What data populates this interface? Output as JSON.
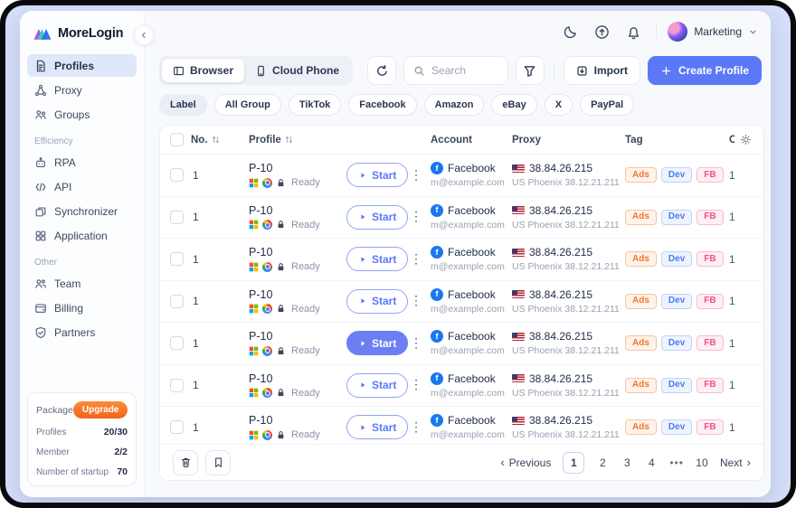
{
  "brand": {
    "name": "MoreLogin"
  },
  "topbar": {
    "icons": [
      "dark-mode",
      "upload",
      "notifications"
    ],
    "account_name": "Marketing"
  },
  "sidebar": {
    "sections": [
      {
        "title": "",
        "items": [
          {
            "label": "Profiles",
            "icon": "file",
            "active": true
          },
          {
            "label": "Proxy",
            "icon": "proxy",
            "active": false
          },
          {
            "label": "Groups",
            "icon": "groups",
            "active": false
          }
        ]
      },
      {
        "title": "Efficiency",
        "items": [
          {
            "label": "RPA",
            "icon": "rpa",
            "active": false
          },
          {
            "label": "API",
            "icon": "api",
            "active": false
          },
          {
            "label": "Synchronizer",
            "icon": "sync",
            "active": false
          },
          {
            "label": "Application",
            "icon": "grid",
            "active": false
          }
        ]
      },
      {
        "title": "Other",
        "items": [
          {
            "label": "Team",
            "icon": "team",
            "active": false
          },
          {
            "label": "Billing",
            "icon": "billing",
            "active": false
          },
          {
            "label": "Partners",
            "icon": "partners",
            "active": false
          }
        ]
      }
    ],
    "package": {
      "title": "Package",
      "upgrade_label": "Upgrade",
      "rows": [
        {
          "label": "Profiles",
          "value": "20/30"
        },
        {
          "label": "Member",
          "value": "2/2"
        },
        {
          "label": "Number of startup",
          "value": "70"
        }
      ]
    }
  },
  "toolbar": {
    "tabs": [
      {
        "label": "Browser",
        "icon": "browser",
        "active": true
      },
      {
        "label": "Cloud Phone",
        "icon": "phone",
        "active": false
      }
    ],
    "search_placeholder": "Search",
    "import_label": "Import",
    "create_label": "Create Profile"
  },
  "filters": [
    "Label",
    "All Group",
    "TikTok",
    "Facebook",
    "Amazon",
    "eBay",
    "X",
    "PayPal"
  ],
  "table": {
    "columns": {
      "no": "No.",
      "profile": "Profile",
      "account": "Account",
      "proxy": "Proxy",
      "tag": "Tag",
      "opens": "O"
    },
    "rows": [
      {
        "no": "1",
        "profile": "P-10",
        "status": "Ready",
        "start": "Start",
        "start_variant": "outline",
        "account": "Facebook",
        "email": "m@example.com",
        "ip": "38.84.26.215",
        "location": "US Phoenix 38.12.21.211",
        "tags": [
          "Ads",
          "Dev",
          "FB"
        ],
        "opens": "1"
      },
      {
        "no": "1",
        "profile": "P-10",
        "status": "Ready",
        "start": "Start",
        "start_variant": "outline",
        "account": "Facebook",
        "email": "m@example.com",
        "ip": "38.84.26.215",
        "location": "US Phoenix 38.12.21.211",
        "tags": [
          "Ads",
          "Dev",
          "FB"
        ],
        "opens": "1"
      },
      {
        "no": "1",
        "profile": "P-10",
        "status": "Ready",
        "start": "Start",
        "start_variant": "outline",
        "account": "Facebook",
        "email": "m@example.com",
        "ip": "38.84.26.215",
        "location": "US Phoenix 38.12.21.211",
        "tags": [
          "Ads",
          "Dev",
          "FB"
        ],
        "opens": "1"
      },
      {
        "no": "1",
        "profile": "P-10",
        "status": "Ready",
        "start": "Start",
        "start_variant": "outline",
        "account": "Facebook",
        "email": "m@example.com",
        "ip": "38.84.26.215",
        "location": "US Phoenix 38.12.21.211",
        "tags": [
          "Ads",
          "Dev",
          "FB"
        ],
        "opens": "1"
      },
      {
        "no": "1",
        "profile": "P-10",
        "status": "Ready",
        "start": "Start",
        "start_variant": "filled",
        "account": "Facebook",
        "email": "m@example.com",
        "ip": "38.84.26.215",
        "location": "US Phoenix 38.12.21.211",
        "tags": [
          "Ads",
          "Dev",
          "FB"
        ],
        "opens": "1"
      },
      {
        "no": "1",
        "profile": "P-10",
        "status": "Ready",
        "start": "Start",
        "start_variant": "outline",
        "account": "Facebook",
        "email": "m@example.com",
        "ip": "38.84.26.215",
        "location": "US Phoenix 38.12.21.211",
        "tags": [
          "Ads",
          "Dev",
          "FB"
        ],
        "opens": "1"
      },
      {
        "no": "1",
        "profile": "P-10",
        "status": "Ready",
        "start": "Start",
        "start_variant": "outline",
        "account": "Facebook",
        "email": "m@example.com",
        "ip": "38.84.26.215",
        "location": "US Phoenix 38.12.21.211",
        "tags": [
          "Ads",
          "Dev",
          "FB"
        ],
        "opens": "1"
      }
    ]
  },
  "pagination": {
    "previous": "Previous",
    "next": "Next",
    "pages": [
      "1",
      "2",
      "3",
      "4",
      "•••",
      "10"
    ],
    "active_page": "1"
  },
  "colors": {
    "primary": "#5b79f7",
    "upgrade_orange": "#f2641c",
    "tag_variants": {
      "Ads": "orange",
      "Dev": "blue",
      "FB": "pink"
    },
    "facebook_blue": "#1877f2"
  }
}
